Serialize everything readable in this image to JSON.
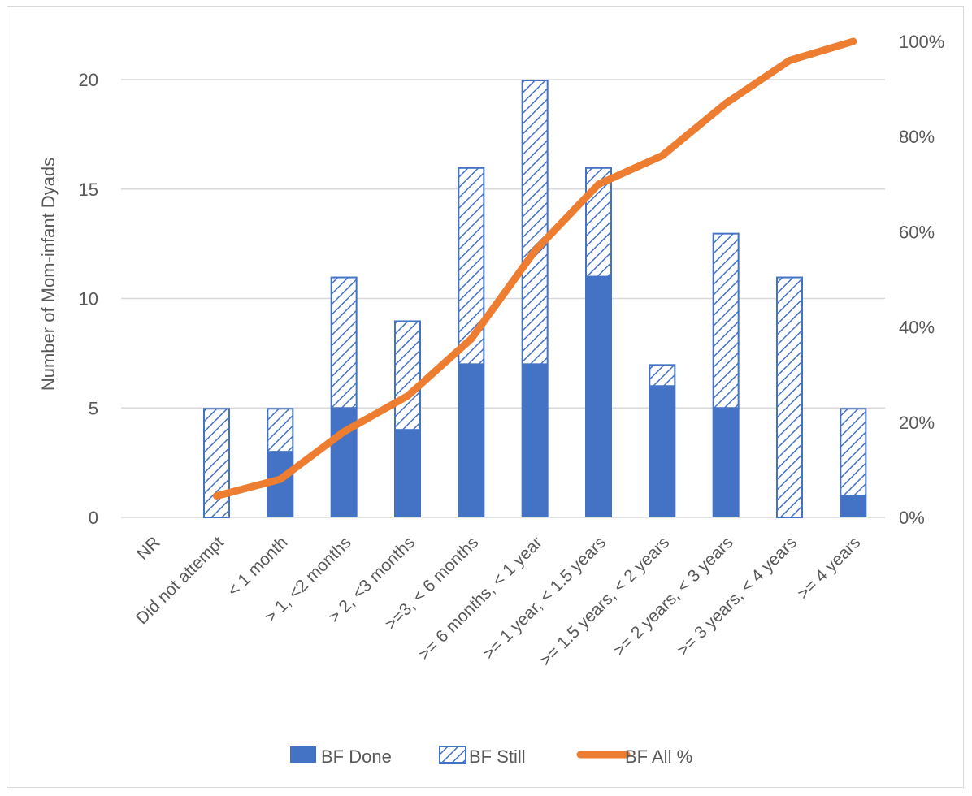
{
  "chart_data": {
    "type": "bar",
    "stacked": true,
    "categories": [
      "NR",
      "Did not attempt",
      "< 1 month",
      "> 1, <2 months",
      "> 2, <3 months",
      ">=3, < 6 months",
      ">= 6 months, < 1 year",
      ">= 1 year, < 1.5 years",
      ">= 1.5 years, < 2 years",
      ">= 2 years, < 3 years",
      ">= 3 years, < 4 years",
      ">= 4 years"
    ],
    "series": [
      {
        "name": "BF Done",
        "kind": "bar",
        "axis": "left",
        "color": "#4472c4",
        "values": [
          0,
          0,
          3,
          5,
          4,
          7,
          7,
          11,
          6,
          5,
          0,
          1
        ]
      },
      {
        "name": "BF Still",
        "kind": "bar",
        "axis": "left",
        "color": "#4472c4",
        "pattern": "hatch",
        "values": [
          0,
          5,
          2,
          6,
          5,
          9,
          13,
          5,
          1,
          8,
          11,
          4
        ]
      },
      {
        "name": "BF All %",
        "kind": "line",
        "axis": "right",
        "color": "#ed7d31",
        "values": [
          null,
          4.5,
          8,
          18,
          25.5,
          37.5,
          56,
          70,
          76,
          87,
          96,
          100
        ]
      }
    ],
    "ylabel": "Number of Mom-infant Dyads",
    "xlabel": "",
    "ylim": [
      0,
      20
    ],
    "yticks": [
      "0",
      "5",
      "10",
      "15",
      "20"
    ],
    "y2lim": [
      0,
      100
    ],
    "y2ticks": [
      "0%",
      "20%",
      "40%",
      "60%",
      "80%",
      "100%"
    ],
    "grid": true,
    "legend": "bottom"
  }
}
